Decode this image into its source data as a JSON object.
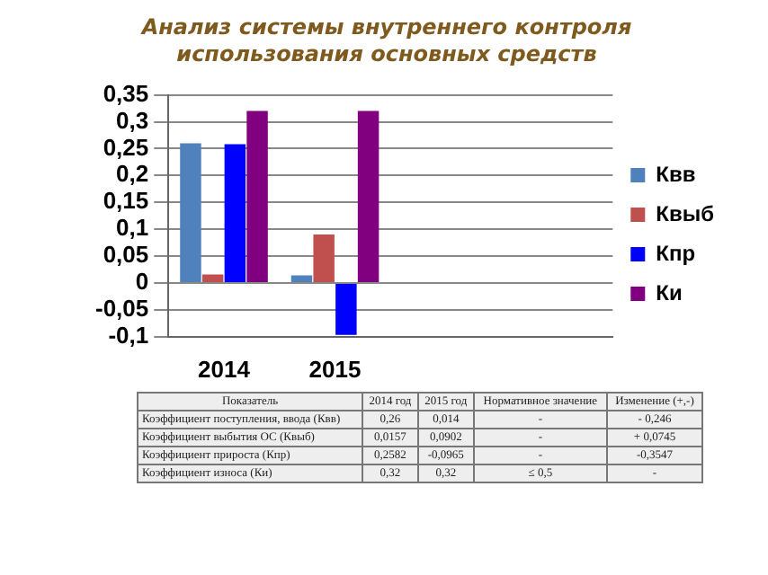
{
  "chart_data": {
    "type": "bar",
    "title": "Анализ системы внутреннего контроля использования основных средств",
    "categories": [
      "2014",
      "2015",
      null,
      null
    ],
    "series": [
      {
        "name": "Квв",
        "color": "#4f81bd",
        "values": [
          0.26,
          0.014,
          null,
          null
        ]
      },
      {
        "name": "Квыб",
        "color": "#c0504d",
        "values": [
          0.0157,
          0.0902,
          null,
          null
        ]
      },
      {
        "name": "Кпр",
        "color": "#0000ff",
        "values": [
          0.2582,
          -0.0965,
          null,
          null
        ]
      },
      {
        "name": "Ки",
        "color": "#800080",
        "values": [
          0.32,
          0.32,
          null,
          null
        ]
      }
    ],
    "ylim": [
      -0.1,
      0.35
    ],
    "yticks": [
      {
        "value": -0.1,
        "label": "-0,1"
      },
      {
        "value": -0.05,
        "label": "-0,05"
      },
      0,
      {
        "value": 0.05,
        "label": "0,05"
      },
      {
        "value": 0.1,
        "label": "0,1"
      },
      {
        "value": 0.15,
        "label": "0,15"
      },
      {
        "value": 0.2,
        "label": "0,2"
      },
      {
        "value": 0.25,
        "label": "0,25"
      },
      {
        "value": 0.3,
        "label": "0,3"
      },
      {
        "value": 0.35,
        "label": "0,35"
      }
    ],
    "grid": "y",
    "legend": "right",
    "annotations": [
      "Показатель",
      "2014 год",
      "2015 год",
      "Нормативное значение",
      "Изменение (+,-)",
      "Коэффициент поступления, ввода (Квв)",
      "0,26",
      "0,014",
      "-",
      "- 0,246",
      "Коэффициент выбытия ОС (Квыб)",
      "0,0157",
      "0,0902",
      "-",
      "+ 0,0745",
      "Коэффициент прироста (Кпр)",
      "0,2582",
      "-0,0965",
      "-",
      "-0,3547",
      "Коэффициент износа (Ки)",
      "0,32",
      "0,32",
      "≤ 0,5",
      "-"
    ]
  }
}
